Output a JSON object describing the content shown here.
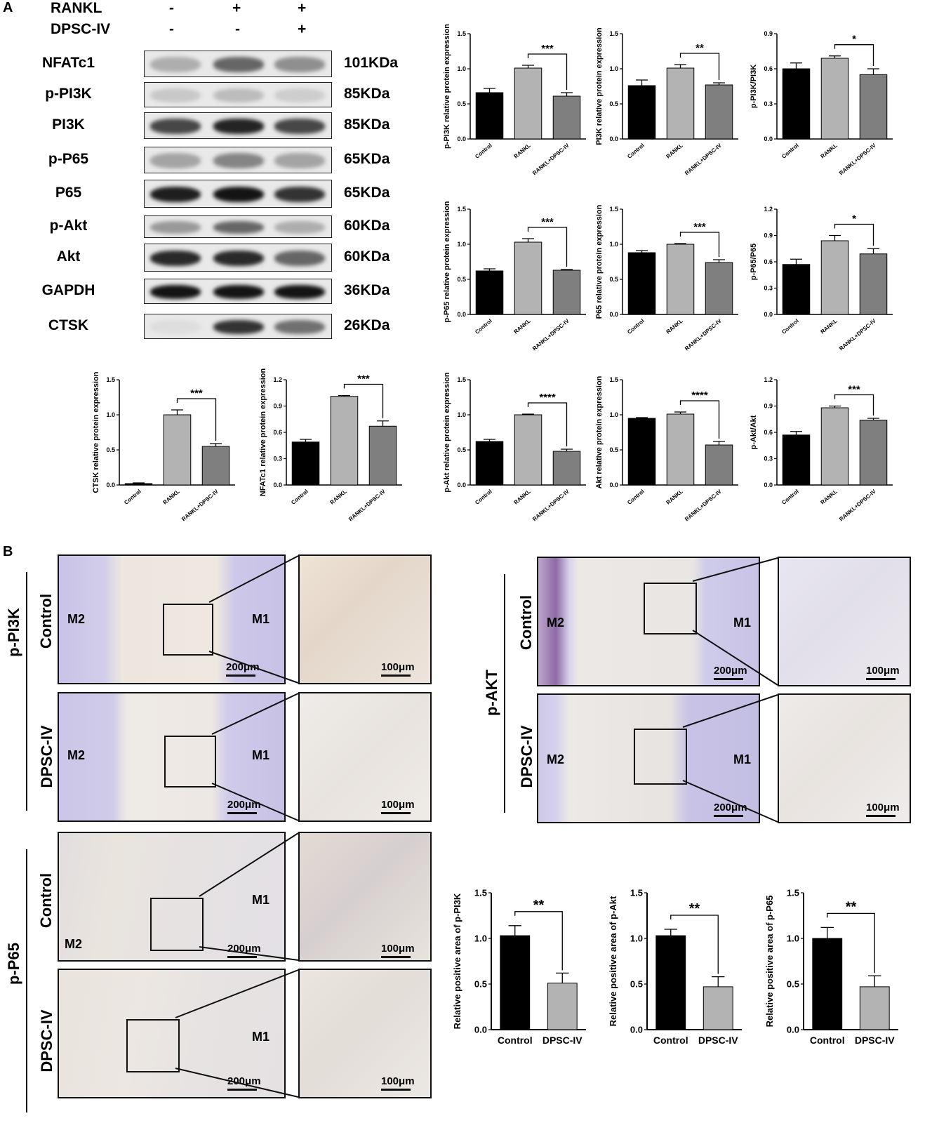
{
  "panels": {
    "a": "A",
    "b": "B"
  },
  "treat": {
    "rankl": "RANKL",
    "dpsc": "DPSC-IV",
    "rankl_signs": [
      "-",
      "+",
      "+"
    ],
    "dpsc_signs": [
      "-",
      "-",
      "+"
    ]
  },
  "blots": [
    {
      "name": "NFATc1",
      "size": "101KDa",
      "lanes": [
        0.25,
        0.6,
        0.4
      ]
    },
    {
      "name": "p-PI3K",
      "size": "85KDa",
      "lanes": [
        0.12,
        0.18,
        0.1
      ]
    },
    {
      "name": "PI3K",
      "size": "85KDa",
      "lanes": [
        0.75,
        0.92,
        0.75
      ]
    },
    {
      "name": "p-P65",
      "size": "65KDa",
      "lanes": [
        0.3,
        0.45,
        0.3
      ]
    },
    {
      "name": "P65",
      "size": "65KDa",
      "lanes": [
        0.95,
        1.0,
        0.85
      ]
    },
    {
      "name": "p-Akt",
      "size": "60KDa",
      "lanes": [
        0.35,
        0.6,
        0.25
      ]
    },
    {
      "name": "Akt",
      "size": "60KDa",
      "lanes": [
        0.9,
        0.9,
        0.6
      ]
    },
    {
      "name": "GAPDH",
      "size": "36KDa",
      "lanes": [
        1.0,
        1.0,
        1.0
      ]
    },
    {
      "name": "CTSK",
      "size": "26KDa",
      "lanes": [
        0.02,
        0.85,
        0.55
      ]
    }
  ],
  "chart_data": [
    {
      "type": "bar",
      "ylabel": "p-PI3K relative protein expression",
      "categories": [
        "Control",
        "RANKL",
        "RANKL+DPSC-IV"
      ],
      "values": [
        0.66,
        1.01,
        0.61
      ],
      "errors": [
        0.06,
        0.04,
        0.05
      ],
      "ylim": [
        0,
        1.5
      ],
      "yticks": [
        "0.0",
        "0.5",
        "1.0",
        "1.5"
      ],
      "sig": "***",
      "colors": [
        "#000000",
        "#b3b3b3",
        "#7f7f7f"
      ]
    },
    {
      "type": "bar",
      "ylabel": "PI3K relative protein expression",
      "categories": [
        "Control",
        "RANKL",
        "RANKL+DPSC-IV"
      ],
      "values": [
        0.76,
        1.01,
        0.77
      ],
      "errors": [
        0.08,
        0.05,
        0.03
      ],
      "ylim": [
        0,
        1.5
      ],
      "yticks": [
        "0.0",
        "0.5",
        "1.0",
        "1.5"
      ],
      "sig": "**",
      "colors": [
        "#000000",
        "#b3b3b3",
        "#7f7f7f"
      ]
    },
    {
      "type": "bar",
      "ylabel": "p-PI3K/PI3K",
      "categories": [
        "Control",
        "RANKL",
        "RANKL+DPSC-IV"
      ],
      "values": [
        0.6,
        0.69,
        0.55
      ],
      "errors": [
        0.05,
        0.02,
        0.05
      ],
      "ylim": [
        0,
        0.9
      ],
      "yticks": [
        "0.0",
        "0.3",
        "0.6",
        "0.9"
      ],
      "sig": "*",
      "colors": [
        "#000000",
        "#b3b3b3",
        "#7f7f7f"
      ]
    },
    {
      "type": "bar",
      "ylabel": "p-P65 relative protein expression",
      "categories": [
        "Control",
        "RANKL",
        "RANKL+DPSC-IV"
      ],
      "values": [
        0.62,
        1.03,
        0.63
      ],
      "errors": [
        0.03,
        0.05,
        0.01
      ],
      "ylim": [
        0,
        1.5
      ],
      "yticks": [
        "0.0",
        "0.5",
        "1.0",
        "1.5"
      ],
      "sig": "***",
      "colors": [
        "#000000",
        "#b3b3b3",
        "#7f7f7f"
      ]
    },
    {
      "type": "bar",
      "ylabel": "P65 relative protein expression",
      "categories": [
        "Control",
        "RANKL",
        "RANKL+DPSC-IV"
      ],
      "values": [
        0.88,
        1.0,
        0.74
      ],
      "errors": [
        0.03,
        0.01,
        0.04
      ],
      "ylim": [
        0,
        1.5
      ],
      "yticks": [
        "0.0",
        "0.5",
        "1.0",
        "1.5"
      ],
      "sig": "***",
      "colors": [
        "#000000",
        "#b3b3b3",
        "#7f7f7f"
      ]
    },
    {
      "type": "bar",
      "ylabel": "p-P65/P65",
      "categories": [
        "Control",
        "RANKL",
        "RANKL+DPSC-IV"
      ],
      "values": [
        0.57,
        0.84,
        0.69
      ],
      "errors": [
        0.06,
        0.06,
        0.06
      ],
      "ylim": [
        0,
        1.2
      ],
      "yticks": [
        "0.0",
        "0.3",
        "0.6",
        "0.9",
        "1.2"
      ],
      "sig": "*",
      "colors": [
        "#000000",
        "#b3b3b3",
        "#7f7f7f"
      ]
    },
    {
      "type": "bar",
      "ylabel": "CTSK relative protein expression",
      "categories": [
        "Control",
        "RANKL",
        "RANKL+DPSC-IV"
      ],
      "values": [
        0.02,
        1.0,
        0.55
      ],
      "errors": [
        0.01,
        0.07,
        0.04
      ],
      "ylim": [
        0,
        1.5
      ],
      "yticks": [
        "0.0",
        "0.5",
        "1.0",
        "1.5"
      ],
      "sig": "***",
      "colors": [
        "#000000",
        "#b3b3b3",
        "#7f7f7f"
      ]
    },
    {
      "type": "bar",
      "ylabel": "NFATc1 relative protein expression",
      "categories": [
        "Control",
        "RANKL",
        "RANKL+DPSC-IV"
      ],
      "values": [
        0.49,
        1.01,
        0.67
      ],
      "errors": [
        0.03,
        0.01,
        0.06
      ],
      "ylim": [
        0,
        1.2
      ],
      "yticks": [
        "0.0",
        "0.3",
        "0.6",
        "0.9",
        "1.2"
      ],
      "sig": "***",
      "colors": [
        "#000000",
        "#b3b3b3",
        "#7f7f7f"
      ]
    },
    {
      "type": "bar",
      "ylabel": "p-Akt relative protein expression",
      "categories": [
        "Control",
        "RANKL",
        "RANKL+DPSC-IV"
      ],
      "values": [
        0.62,
        1.0,
        0.48
      ],
      "errors": [
        0.03,
        0.01,
        0.03
      ],
      "ylim": [
        0,
        1.5
      ],
      "yticks": [
        "0.0",
        "0.5",
        "1.0",
        "1.5"
      ],
      "sig": "****",
      "colors": [
        "#000000",
        "#b3b3b3",
        "#7f7f7f"
      ]
    },
    {
      "type": "bar",
      "ylabel": "Akt relative protein expression",
      "categories": [
        "Control",
        "RANKL",
        "RANKL+DPSC-IV"
      ],
      "values": [
        0.95,
        1.01,
        0.57
      ],
      "errors": [
        0.01,
        0.03,
        0.05
      ],
      "ylim": [
        0,
        1.5
      ],
      "yticks": [
        "0.0",
        "0.5",
        "1.0",
        "1.5"
      ],
      "sig": "****",
      "colors": [
        "#000000",
        "#b3b3b3",
        "#7f7f7f"
      ]
    },
    {
      "type": "bar",
      "ylabel": "p-Akt/Akt",
      "categories": [
        "Control",
        "RANKL",
        "RANKL+DPSC-IV"
      ],
      "values": [
        0.57,
        0.88,
        0.74
      ],
      "errors": [
        0.04,
        0.02,
        0.02
      ],
      "ylim": [
        0,
        1.2
      ],
      "yticks": [
        "0.0",
        "0.3",
        "0.6",
        "0.9",
        "1.2"
      ],
      "sig": "***",
      "colors": [
        "#000000",
        "#b3b3b3",
        "#7f7f7f"
      ]
    },
    {
      "type": "bar",
      "ylabel": "Relative positive area of p-PI3K",
      "categories": [
        "Control",
        "DPSC-IV"
      ],
      "values": [
        1.03,
        0.51
      ],
      "errors": [
        0.11,
        0.11
      ],
      "ylim": [
        0,
        1.5
      ],
      "yticks": [
        "0.0",
        "0.5",
        "1.0",
        "1.5"
      ],
      "sig": "**",
      "colors": [
        "#000000",
        "#b3b3b3"
      ]
    },
    {
      "type": "bar",
      "ylabel": "Relative positive area of p-Akt",
      "categories": [
        "Control",
        "DPSC-IV"
      ],
      "values": [
        1.03,
        0.47
      ],
      "errors": [
        0.07,
        0.11
      ],
      "ylim": [
        0,
        1.5
      ],
      "yticks": [
        "0.0",
        "0.5",
        "1.0",
        "1.5"
      ],
      "sig": "**",
      "colors": [
        "#000000",
        "#b3b3b3"
      ]
    },
    {
      "type": "bar",
      "ylabel": "Relative positive area of p-P65",
      "categories": [
        "Control",
        "DPSC-IV"
      ],
      "values": [
        1.0,
        0.47
      ],
      "errors": [
        0.12,
        0.12
      ],
      "ylim": [
        0,
        1.5
      ],
      "yticks": [
        "0.0",
        "0.5",
        "1.0",
        "1.5"
      ],
      "sig": "**",
      "colors": [
        "#000000",
        "#b3b3b3"
      ]
    }
  ],
  "histology": {
    "groups": {
      "pi3k": "p-PI3K",
      "akt": "p-AKT",
      "p65": "p-P65"
    },
    "rows": {
      "control": "Control",
      "dpsc": "DPSC-IV"
    },
    "teeth": {
      "m1": "M1",
      "m2": "M2"
    },
    "scale_low": "200μm",
    "scale_high": "100μm"
  }
}
